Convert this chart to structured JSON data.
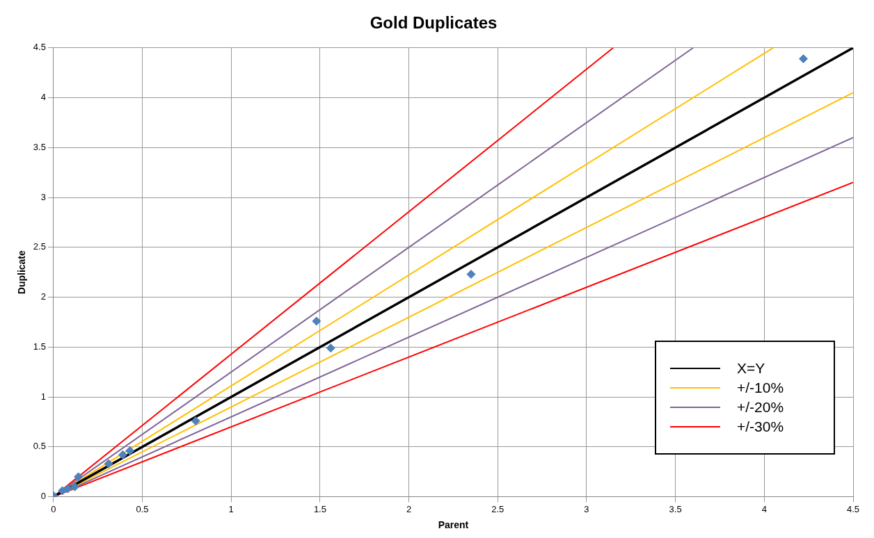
{
  "chart_data": {
    "type": "scatter",
    "title": "Gold Duplicates",
    "xlabel": "Parent",
    "ylabel": "Duplicate",
    "xlim": [
      0,
      4.5
    ],
    "xticks": [
      0,
      0.5,
      1,
      1.5,
      2,
      2.5,
      3,
      3.5,
      4,
      4.5
    ],
    "ylim": [
      0,
      4.5
    ],
    "yticks": [
      0,
      0.5,
      1,
      1.5,
      2,
      2.5,
      3,
      3.5,
      4,
      4.5
    ],
    "grid": true,
    "legend": "bottom right",
    "line_style": "solid",
    "series": [
      {
        "type": "scatter",
        "marker": "diamond",
        "color": "#4f81bd",
        "x": [
          0.0,
          0.05,
          0.08,
          0.12,
          0.14,
          0.31,
          0.39,
          0.43,
          0.8,
          1.48,
          1.56,
          2.35,
          4.22
        ],
        "values": [
          0.01,
          0.06,
          0.08,
          0.1,
          0.2,
          0.33,
          0.42,
          0.46,
          0.76,
          1.76,
          1.49,
          2.23,
          4.39
        ]
      },
      {
        "type": "line",
        "name": "X=Y",
        "color": "#000000",
        "x": [
          0,
          4.5
        ],
        "values": [
          0,
          4.5
        ]
      },
      {
        "type": "line",
        "name": "+/-10%",
        "color": "#ffc000",
        "x": [
          0,
          4.05
        ],
        "values": [
          0,
          4.5
        ]
      },
      {
        "type": "line",
        "color": "#ffc000",
        "x": [
          0,
          4.5
        ],
        "values": [
          0,
          4.05
        ]
      },
      {
        "type": "line",
        "name": "+/-20%",
        "color": "#7f6497",
        "x": [
          0,
          3.6
        ],
        "values": [
          0,
          4.5
        ]
      },
      {
        "type": "line",
        "color": "#7f6497",
        "x": [
          0,
          4.5
        ],
        "values": [
          0,
          3.6
        ]
      },
      {
        "type": "line",
        "name": "+/-30%",
        "color": "#ff0000",
        "x": [
          0,
          3.15
        ],
        "values": [
          0,
          4.5
        ]
      },
      {
        "type": "line",
        "color": "#ff0000",
        "x": [
          0,
          4.5
        ],
        "values": [
          0,
          3.15
        ]
      }
    ]
  }
}
